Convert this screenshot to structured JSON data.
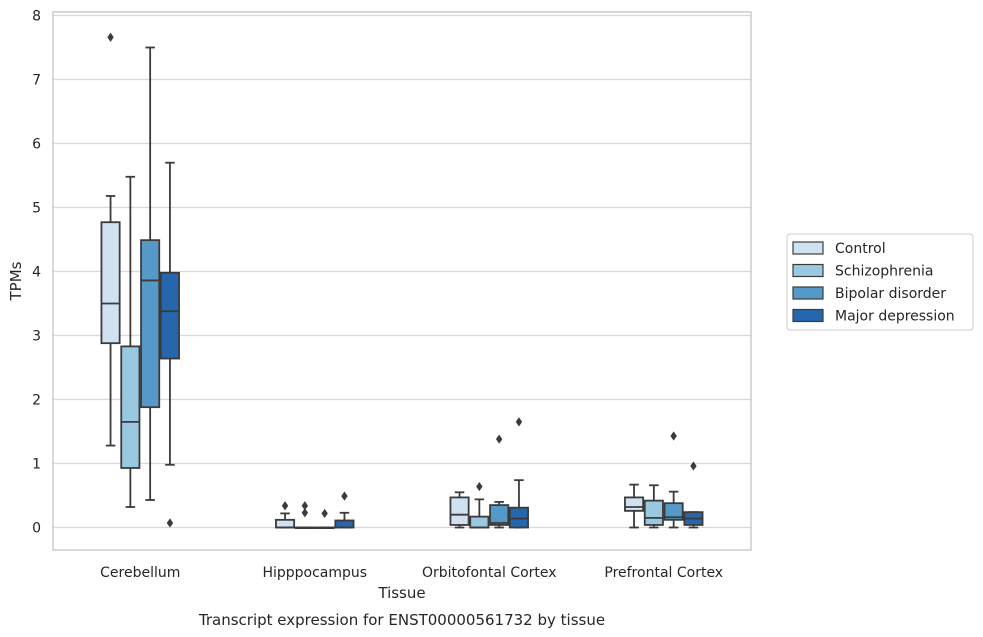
{
  "chart_data": {
    "type": "box",
    "caption": "Transcript expression for ENST00000561732 by tissue",
    "xlabel": "Tissue",
    "ylabel": "TPMs",
    "ylim": [
      -0.35,
      8.05
    ],
    "yticks": [
      0,
      1,
      2,
      3,
      4,
      5,
      6,
      7,
      8
    ],
    "grid": true,
    "legend_position": "right",
    "categories": [
      "Cerebellum",
      "Hipppocampus",
      "Orbitofontal Cortex",
      "Prefrontal Cortex"
    ],
    "series": [
      {
        "name": "Control",
        "color": "#d0e1f2",
        "boxes": [
          {
            "whislo": 1.28,
            "q1": 2.88,
            "med": 3.5,
            "q3": 4.77,
            "whishi": 5.18,
            "fliers": [
              7.66
            ]
          },
          {
            "whislo": 0.0,
            "q1": 0.0,
            "med": 0.0,
            "q3": 0.12,
            "whishi": 0.22,
            "fliers": [
              0.34
            ]
          },
          {
            "whislo": 0.0,
            "q1": 0.04,
            "med": 0.2,
            "q3": 0.47,
            "whishi": 0.55,
            "fliers": []
          },
          {
            "whislo": 0.0,
            "q1": 0.26,
            "med": 0.32,
            "q3": 0.47,
            "whishi": 0.67,
            "fliers": []
          }
        ]
      },
      {
        "name": "Schizophrenia",
        "color": "#9ac8e0",
        "boxes": [
          {
            "whislo": 0.32,
            "q1": 0.93,
            "med": 1.65,
            "q3": 2.83,
            "whishi": 5.48,
            "fliers": []
          },
          {
            "whislo": 0.0,
            "q1": 0.0,
            "med": 0.0,
            "q3": 0.0,
            "whishi": 0.0,
            "fliers": [
              0.34,
              0.23
            ]
          },
          {
            "whislo": 0.0,
            "q1": 0.0,
            "med": 0.0,
            "q3": 0.17,
            "whishi": 0.44,
            "fliers": [
              0.64
            ]
          },
          {
            "whislo": 0.0,
            "q1": 0.04,
            "med": 0.15,
            "q3": 0.42,
            "whishi": 0.66,
            "fliers": []
          }
        ]
      },
      {
        "name": "Bipolar disorder",
        "color": "#5599c8",
        "boxes": [
          {
            "whislo": 0.43,
            "q1": 1.88,
            "med": 3.86,
            "q3": 4.49,
            "whishi": 7.5,
            "fliers": []
          },
          {
            "whislo": 0.0,
            "q1": 0.0,
            "med": 0.0,
            "q3": 0.0,
            "whishi": 0.0,
            "fliers": [
              0.22
            ]
          },
          {
            "whislo": 0.0,
            "q1": 0.04,
            "med": 0.07,
            "q3": 0.35,
            "whishi": 0.4,
            "fliers": [
              1.38
            ]
          },
          {
            "whislo": 0.0,
            "q1": 0.12,
            "med": 0.16,
            "q3": 0.38,
            "whishi": 0.56,
            "fliers": [
              1.43
            ]
          }
        ]
      },
      {
        "name": "Major depression",
        "color": "#2566ad",
        "boxes": [
          {
            "whislo": 0.98,
            "q1": 2.64,
            "med": 3.38,
            "q3": 3.98,
            "whishi": 5.7,
            "fliers": [
              0.07
            ]
          },
          {
            "whislo": 0.0,
            "q1": 0.0,
            "med": 0.0,
            "q3": 0.11,
            "whishi": 0.23,
            "fliers": [
              0.49
            ]
          },
          {
            "whislo": 0.0,
            "q1": 0.0,
            "med": 0.14,
            "q3": 0.31,
            "whishi": 0.74,
            "fliers": [
              1.65
            ]
          },
          {
            "whislo": 0.0,
            "q1": 0.04,
            "med": 0.14,
            "q3": 0.24,
            "whishi": 0.24,
            "fliers": [
              0.96
            ]
          }
        ]
      }
    ]
  }
}
